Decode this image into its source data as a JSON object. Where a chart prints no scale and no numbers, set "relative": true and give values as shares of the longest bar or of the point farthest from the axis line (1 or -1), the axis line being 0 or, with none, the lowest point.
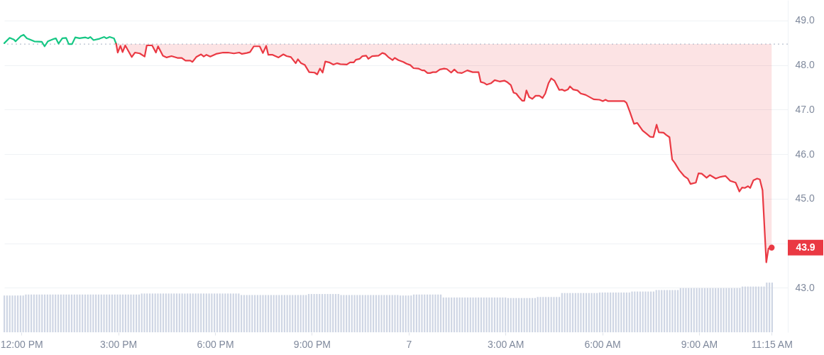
{
  "chart_data": [
    {
      "type": "line",
      "xlim": [
        "--01-06T11:28",
        "--01-07T11:45"
      ],
      "xticks": [
        {
          "value": "--01-06T12:00",
          "label": "12:00 PM"
        },
        {
          "value": "--01-06T15:00",
          "label": "3:00 PM"
        },
        {
          "value": "--01-06T18:00",
          "label": "6:00 PM"
        },
        {
          "value": "--01-06T21:00",
          "label": "9:00 PM"
        },
        {
          "value": "--01-07T00:00",
          "label": "7"
        },
        {
          "value": "--01-07T03:00",
          "label": "3:00 AM"
        },
        {
          "value": "--01-07T06:00",
          "label": "6:00 AM"
        },
        {
          "value": "--01-07T09:00",
          "label": "9:00 AM"
        },
        {
          "value": "--01-07T11:15",
          "label": "11:15 AM"
        }
      ],
      "ylim": [
        42,
        49.46
      ],
      "yticks": [
        {
          "value": 43,
          "label": "43.0"
        },
        {
          "value": 44,
          "label": null
        },
        {
          "value": 45,
          "label": "45.0"
        },
        {
          "value": 46,
          "label": "46.0"
        },
        {
          "value": 47,
          "label": "47.0"
        },
        {
          "value": 48,
          "label": "48.0"
        },
        {
          "value": 49,
          "label": "49.0"
        }
      ],
      "grid": "y",
      "ref_lines": [
        {
          "axis": "y",
          "value": 48.47,
          "color": "#a6b0c3",
          "line_style": "dotted"
        }
      ],
      "series": [
        {
          "color": "#16c784",
          "x": [
            "--01-06T11:28",
            "--01-06T11:38",
            "--01-06T11:46",
            "--01-06T11:49",
            "--01-06T11:59",
            "--01-06T12:04",
            "--01-06T12:10",
            "--01-06T12:16",
            "--01-06T12:24",
            "--01-06T12:38",
            "--01-06T12:43",
            "--01-06T12:49",
            "--01-06T13:01",
            "--01-06T13:04",
            "--01-06T13:09",
            "--01-06T13:16",
            "--01-06T13:23",
            "--01-06T13:28",
            "--01-06T13:34",
            "--01-06T13:40",
            "--01-06T13:48",
            "--01-06T13:59",
            "--01-06T14:04",
            "--01-06T14:08",
            "--01-06T14:14",
            "--01-06T14:25",
            "--01-06T14:34",
            "--01-06T14:38",
            "--01-06T14:44",
            "--01-06T14:52",
            "--01-06T14:56"
          ],
          "values": [
            48.49,
            48.61,
            48.57,
            48.53,
            48.65,
            48.68,
            48.6,
            48.57,
            48.53,
            48.52,
            48.42,
            48.53,
            48.59,
            48.6,
            48.48,
            48.6,
            48.61,
            48.47,
            48.47,
            48.62,
            48.6,
            48.62,
            48.6,
            48.63,
            48.56,
            48.59,
            48.63,
            48.6,
            48.63,
            48.6,
            48.48
          ]
        },
        {
          "color": "#ea3943",
          "x": [
            "--01-06T14:56",
            "--01-06T14:59",
            "--01-06T15:04",
            "--01-06T15:08",
            "--01-06T15:13",
            "--01-06T15:25",
            "--01-06T15:31",
            "--01-06T15:40",
            "--01-06T15:49",
            "--01-06T15:53",
            "--01-06T16:03",
            "--01-06T16:10",
            "--01-06T16:14",
            "--01-06T16:23",
            "--01-06T16:30",
            "--01-06T16:39",
            "--01-06T16:50",
            "--01-06T16:58",
            "--01-06T17:05",
            "--01-06T17:14",
            "--01-06T17:18",
            "--01-06T17:25",
            "--01-06T17:34",
            "--01-06T17:39",
            "--01-06T17:44",
            "--01-06T17:51",
            "--01-06T18:02",
            "--01-06T18:15",
            "--01-06T18:24",
            "--01-06T18:35",
            "--01-06T18:45",
            "--01-06T18:50",
            "--01-06T18:59",
            "--01-06T19:05",
            "--01-06T19:12",
            "--01-06T19:23",
            "--01-06T19:29",
            "--01-06T19:35",
            "--01-06T19:39",
            "--01-06T19:47",
            "--01-06T19:58",
            "--01-06T20:07",
            "--01-06T20:13",
            "--01-06T20:21",
            "--01-06T20:30",
            "--01-06T20:34",
            "--01-06T20:40",
            "--01-06T20:47",
            "--01-06T20:55",
            "--01-06T21:05",
            "--01-06T21:10",
            "--01-06T21:15",
            "--01-06T21:20",
            "--01-06T21:25",
            "--01-06T21:32",
            "--01-06T21:40",
            "--01-06T21:47",
            "--01-06T21:53",
            "--01-06T22:05",
            "--01-06T22:11",
            "--01-06T22:18",
            "--01-06T22:22",
            "--01-06T22:29",
            "--01-06T22:34",
            "--01-06T22:41",
            "--01-06T22:45",
            "--01-06T22:52",
            "--01-06T23:04",
            "--01-06T23:11",
            "--01-06T23:16",
            "--01-06T23:22",
            "--01-06T23:30",
            "--01-06T23:34",
            "--01-06T23:41",
            "--01-06T23:50",
            "--01-06T23:56",
            "--01-07T00:03",
            "--01-07T00:09",
            "--01-07T00:18",
            "--01-07T00:25",
            "--01-07T00:29",
            "--01-07T00:35",
            "--01-07T00:40",
            "--01-07T00:45",
            "--01-07T00:51",
            "--01-07T00:58",
            "--01-07T01:06",
            "--01-07T01:11",
            "--01-07T01:19",
            "--01-07T01:25",
            "--01-07T01:31",
            "--01-07T01:39",
            "--01-07T01:49",
            "--01-07T01:59",
            "--01-07T02:10",
            "--01-07T02:14",
            "--01-07T02:20",
            "--01-07T02:25",
            "--01-07T02:33",
            "--01-07T02:40",
            "--01-07T02:49",
            "--01-07T02:58",
            "--01-07T03:04",
            "--01-07T03:10",
            "--01-07T03:15",
            "--01-07T03:20",
            "--01-07T03:25",
            "--01-07T03:31",
            "--01-07T03:35",
            "--01-07T03:39",
            "--01-07T03:44",
            "--01-07T03:50",
            "--01-07T03:56",
            "--01-07T04:03",
            "--01-07T04:09",
            "--01-07T04:14",
            "--01-07T04:20",
            "--01-07T04:25",
            "--01-07T04:31",
            "--01-07T04:40",
            "--01-07T04:45",
            "--01-07T04:50",
            "--01-07T04:56",
            "--01-07T05:00",
            "--01-07T05:06",
            "--01-07T05:14",
            "--01-07T05:20",
            "--01-07T05:29",
            "--01-07T05:44",
            "--01-07T05:55",
            "--01-07T06:01",
            "--01-07T06:06",
            "--01-07T06:11",
            "--01-07T06:25",
            "--01-07T06:41",
            "--01-07T06:45",
            "--01-07T06:51",
            "--01-07T06:59",
            "--01-07T07:05",
            "--01-07T07:15",
            "--01-07T07:22",
            "--01-07T07:29",
            "--01-07T07:35",
            "--01-07T07:41",
            "--01-07T07:45",
            "--01-07T07:54",
            "--01-07T07:59",
            "--01-07T08:05",
            "--01-07T08:10",
            "--01-07T08:15",
            "--01-07T08:23",
            "--01-07T08:32",
            "--01-07T08:39",
            "--01-07T08:44",
            "--01-07T08:54",
            "--01-07T08:59",
            "--01-07T09:05",
            "--01-07T09:14",
            "--01-07T09:20",
            "--01-07T09:31",
            "--01-07T09:40",
            "--01-07T09:49",
            "--01-07T09:58",
            "--01-07T10:08",
            "--01-07T10:15",
            "--01-07T10:20",
            "--01-07T10:25",
            "--01-07T10:31",
            "--01-07T10:35",
            "--01-07T10:41",
            "--01-07T10:48",
            "--01-07T10:53",
            "--01-07T10:58",
            "--01-07T11:05",
            "--01-07T11:09",
            "--01-07T11:15"
          ],
          "values": [
            48.48,
            48.28,
            48.43,
            48.29,
            48.44,
            48.18,
            48.28,
            48.26,
            48.19,
            48.44,
            48.44,
            48.28,
            48.42,
            48.21,
            48.17,
            48.2,
            48.16,
            48.16,
            48.1,
            48.1,
            48.07,
            48.18,
            48.24,
            48.19,
            48.23,
            48.19,
            48.25,
            48.28,
            48.28,
            48.26,
            48.28,
            48.25,
            48.27,
            48.29,
            48.42,
            48.42,
            48.27,
            48.43,
            48.23,
            48.23,
            48.17,
            48.24,
            48.2,
            48.18,
            48.04,
            48.13,
            48.04,
            48,
            47.84,
            47.83,
            47.79,
            47.92,
            47.83,
            48.08,
            48.06,
            48.01,
            48.04,
            48.02,
            48.01,
            48.06,
            48.06,
            48.12,
            48.14,
            48.2,
            48.21,
            48.14,
            48.2,
            48.21,
            48.27,
            48.25,
            48.18,
            48.11,
            48.16,
            48.11,
            48.07,
            48.03,
            48,
            47.93,
            47.92,
            47.88,
            47.88,
            47.82,
            47.82,
            47.84,
            47.84,
            47.9,
            47.92,
            47.91,
            47.83,
            47.9,
            47.83,
            47.82,
            47.88,
            47.84,
            47.84,
            47.62,
            47.6,
            47.56,
            47.59,
            47.66,
            47.63,
            47.65,
            47.61,
            47.55,
            47.38,
            47.36,
            47.28,
            47.2,
            47.2,
            47.43,
            47.28,
            47.24,
            47.31,
            47.31,
            47.26,
            47.36,
            47.59,
            47.7,
            47.65,
            47.44,
            47.45,
            47.42,
            47.45,
            47.52,
            47.45,
            47.43,
            47.36,
            47.33,
            47.23,
            47.22,
            47.19,
            47.22,
            47.19,
            47.19,
            47.19,
            47.15,
            46.96,
            46.68,
            46.7,
            46.53,
            46.46,
            46.39,
            46.38,
            46.66,
            46.49,
            46.48,
            46.43,
            46.38,
            45.88,
            45.8,
            45.64,
            45.51,
            45.45,
            45.33,
            45.36,
            45.57,
            45.56,
            45.47,
            45.53,
            45.45,
            45.49,
            45.51,
            45.4,
            45.36,
            45.16,
            45.25,
            45.24,
            45.28,
            45.24,
            45.41,
            45.45,
            45.43,
            45.19,
            43.57,
            43.88,
            43.9
          ],
          "lower": [
            48.48,
            48.28,
            48.43,
            48.29,
            48.44,
            48.18,
            48.28,
            48.26,
            48.19,
            48.44,
            48.44,
            48.28,
            48.42,
            48.21,
            48.17,
            48.2,
            48.16,
            48.16,
            48.1,
            48.1,
            48.07,
            48.18,
            48.24,
            48.19,
            48.23,
            48.19,
            48.25,
            48.28,
            48.28,
            48.26,
            48.28,
            48.25,
            48.27,
            48.29,
            48.42,
            48.42,
            48.27,
            48.43,
            48.23,
            48.23,
            48.17,
            48.24,
            48.2,
            48.18,
            48.04,
            48.13,
            48.04,
            48,
            47.84,
            47.83,
            47.79,
            47.92,
            47.83,
            48.08,
            48.06,
            48.01,
            48.04,
            48.02,
            48.01,
            48.06,
            48.06,
            48.12,
            48.14,
            48.2,
            48.21,
            48.14,
            48.2,
            48.21,
            48.27,
            48.25,
            48.18,
            48.11,
            48.16,
            48.11,
            48.07,
            48.03,
            48,
            47.93,
            47.92,
            47.88,
            47.88,
            47.82,
            47.82,
            47.84,
            47.84,
            47.9,
            47.92,
            47.91,
            47.83,
            47.9,
            47.83,
            47.82,
            47.88,
            47.84,
            47.84,
            47.62,
            47.6,
            47.56,
            47.59,
            47.66,
            47.63,
            47.65,
            47.61,
            47.55,
            47.38,
            47.36,
            47.28,
            47.2,
            47.2,
            47.43,
            47.28,
            47.24,
            47.31,
            47.31,
            47.26,
            47.36,
            47.59,
            47.7,
            47.65,
            47.44,
            47.45,
            47.42,
            47.45,
            47.52,
            47.45,
            47.43,
            47.36,
            47.33,
            47.23,
            47.22,
            47.19,
            47.22,
            47.19,
            47.19,
            47.19,
            47.15,
            46.96,
            46.68,
            46.7,
            46.53,
            46.46,
            46.39,
            46.38,
            46.66,
            46.49,
            46.48,
            46.43,
            46.38,
            45.88,
            45.8,
            45.64,
            45.51,
            45.45,
            45.33,
            45.36,
            45.57,
            45.56,
            45.47,
            45.53,
            45.45,
            45.49,
            45.51,
            45.4,
            45.36,
            45.16,
            45.25,
            45.24,
            45.28,
            45.24,
            45.41,
            45.45,
            45.43,
            45.19,
            43.57,
            43.88,
            43.9
          ],
          "upper": [
            48.47,
            48.47,
            48.47,
            48.47,
            48.47,
            48.47,
            48.47,
            48.47,
            48.47,
            48.47,
            48.47,
            48.47,
            48.47,
            48.47,
            48.47,
            48.47,
            48.47,
            48.47,
            48.47,
            48.47,
            48.47,
            48.47,
            48.47,
            48.47,
            48.47,
            48.47,
            48.47,
            48.47,
            48.47,
            48.47,
            48.47,
            48.47,
            48.47,
            48.47,
            48.47,
            48.47,
            48.47,
            48.47,
            48.47,
            48.47,
            48.47,
            48.47,
            48.47,
            48.47,
            48.47,
            48.47,
            48.47,
            48.47,
            48.47,
            48.47,
            48.47,
            48.47,
            48.47,
            48.47,
            48.47,
            48.47,
            48.47,
            48.47,
            48.47,
            48.47,
            48.47,
            48.47,
            48.47,
            48.47,
            48.47,
            48.47,
            48.47,
            48.47,
            48.47,
            48.47,
            48.47,
            48.47,
            48.47,
            48.47,
            48.47,
            48.47,
            48.47,
            48.47,
            48.47,
            48.47,
            48.47,
            48.47,
            48.47,
            48.47,
            48.47,
            48.47,
            48.47,
            48.47,
            48.47,
            48.47,
            48.47,
            48.47,
            48.47,
            48.47,
            48.47,
            48.47,
            48.47,
            48.47,
            48.47,
            48.47,
            48.47,
            48.47,
            48.47,
            48.47,
            48.47,
            48.47,
            48.47,
            48.47,
            48.47,
            48.47,
            48.47,
            48.47,
            48.47,
            48.47,
            48.47,
            48.47,
            48.47,
            48.47,
            48.47,
            48.47,
            48.47,
            48.47,
            48.47,
            48.47,
            48.47,
            48.47,
            48.47,
            48.47,
            48.47,
            48.47,
            48.47,
            48.47,
            48.47,
            48.47,
            48.47,
            48.47,
            48.47,
            48.47,
            48.47,
            48.47,
            48.47,
            48.47,
            48.47,
            48.47,
            48.47,
            48.47,
            48.47,
            48.47,
            48.47,
            48.47,
            48.47,
            48.47,
            48.47,
            48.47,
            48.47,
            48.47,
            48.47,
            48.47,
            48.47,
            48.47,
            48.47,
            48.47,
            48.47,
            48.47,
            48.47,
            48.47,
            48.47,
            48.47,
            48.47,
            48.47,
            48.47,
            48.47,
            48.47,
            48.47,
            48.47,
            48.47
          ]
        }
      ],
      "annotations": [
        {
          "text": "43.9",
          "x": "--01-07T11:15",
          "y": 43.9
        }
      ]
    },
    {
      "type": "bar",
      "relative": true,
      "color": "#cfd6e4",
      "categories": [
        null,
        null,
        null,
        null,
        null,
        null,
        null,
        null,
        null,
        null,
        null,
        null,
        null,
        null,
        null,
        null,
        null,
        null,
        null,
        null,
        null,
        null,
        null,
        null,
        null,
        null,
        null,
        null,
        null,
        null,
        null,
        null,
        null,
        null,
        null,
        null,
        null,
        null,
        null,
        null,
        null,
        null,
        null,
        null,
        null,
        null,
        null,
        null,
        null,
        null,
        null,
        null,
        null,
        null,
        null,
        null,
        null,
        null,
        null,
        null,
        null,
        null,
        null,
        null,
        null,
        null,
        null,
        null,
        null,
        null,
        null,
        null,
        null,
        null,
        null,
        null,
        null,
        null,
        null,
        null,
        null,
        null,
        null,
        null,
        null,
        null,
        null,
        null,
        null,
        null,
        null,
        null,
        null,
        null,
        null,
        null,
        null,
        null,
        null,
        null,
        null,
        null,
        null,
        null,
        null,
        null,
        null,
        null,
        null,
        null,
        null,
        null,
        null,
        null,
        null,
        null,
        null,
        null,
        null,
        null,
        null,
        null,
        null,
        null,
        null,
        null,
        null,
        null,
        null,
        null,
        null,
        null,
        null,
        null,
        null,
        null,
        null,
        null,
        null,
        null,
        null,
        null,
        null,
        null,
        null,
        null,
        null,
        null,
        null,
        null,
        null,
        null,
        null,
        null,
        null,
        null,
        null,
        null,
        null,
        null,
        null,
        null,
        null,
        null,
        null,
        null,
        null,
        null,
        null,
        null,
        null,
        null,
        null,
        null,
        null,
        null,
        null,
        null,
        null,
        null,
        null,
        null,
        null,
        null,
        null,
        null,
        null,
        null,
        null,
        null,
        null,
        null,
        null,
        null,
        null,
        null,
        null,
        null,
        null,
        null,
        null,
        null,
        null,
        null,
        null,
        null,
        null,
        null,
        null,
        null,
        null,
        null,
        null,
        null,
        null,
        null,
        null,
        null,
        null,
        null,
        null,
        null,
        null,
        null,
        null,
        null,
        null,
        null,
        null,
        null,
        null,
        null,
        null,
        null,
        null,
        null,
        null,
        null,
        null,
        null,
        null,
        null,
        null,
        null,
        null,
        null,
        null,
        null,
        null,
        null,
        null,
        null,
        null,
        null,
        null,
        null,
        null,
        null,
        null,
        null,
        null,
        null,
        null,
        null,
        null,
        null,
        null,
        null,
        null,
        null,
        null,
        null,
        null,
        null,
        null,
        null,
        null,
        null,
        null,
        null,
        null,
        null,
        null,
        null,
        null,
        null
      ],
      "values": [
        0.74,
        0.74,
        0.74,
        0.74,
        0.74,
        0.74,
        0.74,
        0.74,
        0.76,
        0.76,
        0.76,
        0.76,
        0.76,
        0.76,
        0.76,
        0.76,
        0.76,
        0.76,
        0.76,
        0.76,
        0.76,
        0.76,
        0.76,
        0.76,
        0.76,
        0.76,
        0.76,
        0.76,
        0.76,
        0.76,
        0.76,
        0.76,
        0.76,
        0.76,
        0.76,
        0.76,
        0.76,
        0.76,
        0.76,
        0.76,
        0.76,
        0.76,
        0.76,
        0.76,
        0.76,
        0.76,
        0.76,
        0.76,
        0.76,
        0.76,
        0.76,
        0.78,
        0.78,
        0.78,
        0.78,
        0.78,
        0.78,
        0.78,
        0.78,
        0.78,
        0.78,
        0.78,
        0.78,
        0.78,
        0.78,
        0.78,
        0.78,
        0.78,
        0.78,
        0.78,
        0.78,
        0.78,
        0.78,
        0.78,
        0.78,
        0.78,
        0.78,
        0.78,
        0.78,
        0.78,
        0.78,
        0.78,
        0.78,
        0.78,
        0.78,
        0.78,
        0.78,
        0.78,
        0.75,
        0.75,
        0.75,
        0.75,
        0.75,
        0.75,
        0.75,
        0.75,
        0.75,
        0.75,
        0.75,
        0.75,
        0.75,
        0.75,
        0.75,
        0.75,
        0.75,
        0.75,
        0.75,
        0.75,
        0.75,
        0.75,
        0.75,
        0.75,
        0.75,
        0.77,
        0.77,
        0.77,
        0.77,
        0.77,
        0.77,
        0.77,
        0.77,
        0.77,
        0.77,
        0.77,
        0.77,
        0.75,
        0.75,
        0.75,
        0.75,
        0.75,
        0.75,
        0.75,
        0.75,
        0.75,
        0.75,
        0.75,
        0.75,
        0.75,
        0.75,
        0.75,
        0.75,
        0.75,
        0.75,
        0.75,
        0.75,
        0.75,
        0.75,
        0.74,
        0.74,
        0.74,
        0.74,
        0.74,
        0.76,
        0.76,
        0.76,
        0.76,
        0.76,
        0.76,
        0.76,
        0.76,
        0.76,
        0.76,
        0.76,
        0.7,
        0.7,
        0.7,
        0.7,
        0.7,
        0.7,
        0.7,
        0.7,
        0.7,
        0.7,
        0.7,
        0.7,
        0.7,
        0.7,
        0.7,
        0.7,
        0.7,
        0.7,
        0.7,
        0.7,
        0.7,
        0.7,
        0.7,
        0.7,
        0.69,
        0.69,
        0.69,
        0.69,
        0.69,
        0.69,
        0.69,
        0.69,
        0.69,
        0.69,
        0.69,
        0.71,
        0.71,
        0.71,
        0.71,
        0.71,
        0.71,
        0.71,
        0.71,
        0.71,
        0.79,
        0.79,
        0.79,
        0.79,
        0.79,
        0.79,
        0.79,
        0.79,
        0.79,
        0.79,
        0.79,
        0.79,
        0.79,
        0.79,
        0.8,
        0.8,
        0.8,
        0.8,
        0.8,
        0.8,
        0.8,
        0.8,
        0.8,
        0.8,
        0.8,
        0.8,
        0.82,
        0.82,
        0.82,
        0.82,
        0.82,
        0.82,
        0.82,
        0.82,
        0.82,
        0.85,
        0.85,
        0.85,
        0.85,
        0.85,
        0.85,
        0.85,
        0.85,
        0.85,
        0.89,
        0.89,
        0.89,
        0.89,
        0.89,
        0.89,
        0.89,
        0.89,
        0.89,
        0.89,
        0.89,
        0.89,
        0.89,
        0.89,
        0.89,
        0.89,
        0.89,
        0.89,
        0.89,
        0.89,
        0.89,
        0.89,
        0.89,
        0.92,
        0.92,
        0.92,
        0.92,
        0.92,
        0.92,
        0.92,
        0.92,
        0.92,
        1,
        1,
        1
      ]
    }
  ]
}
